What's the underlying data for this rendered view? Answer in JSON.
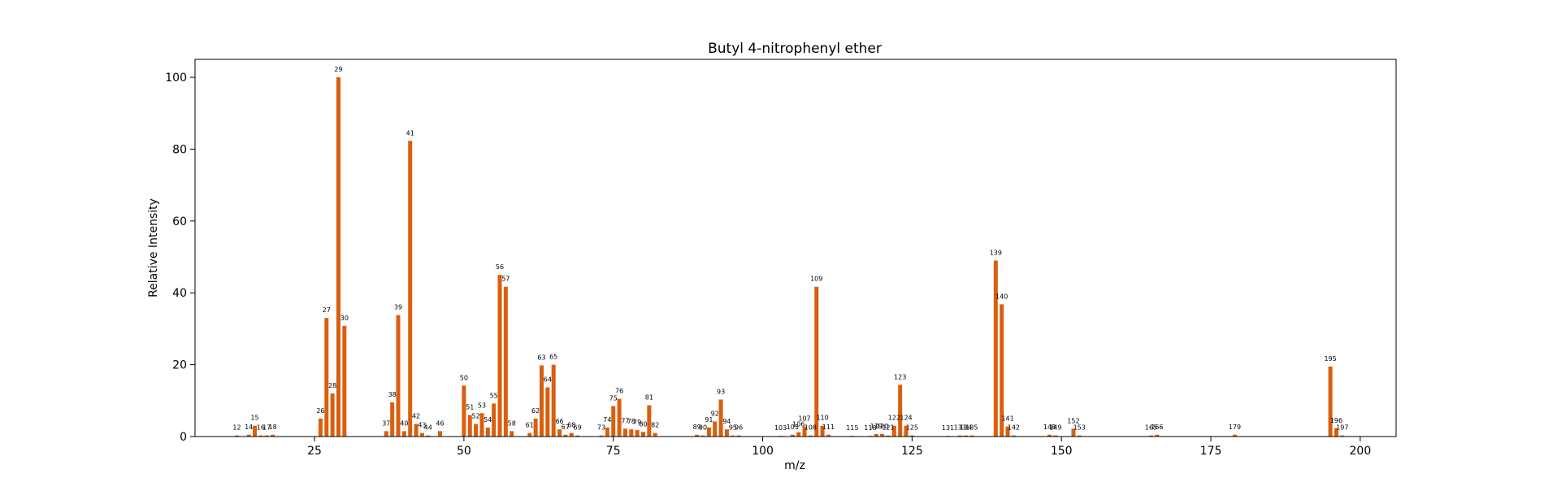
{
  "chart_data": {
    "type": "bar",
    "title": "Butyl 4-nitrophenyl ether",
    "xlabel": "m/z",
    "ylabel": "Relative Intensity",
    "xlim": [
      5,
      206
    ],
    "ylim": [
      0,
      105
    ],
    "xticks": [
      25,
      50,
      75,
      100,
      125,
      150,
      175,
      200
    ],
    "yticks": [
      0,
      20,
      40,
      60,
      80,
      100
    ],
    "grid": false,
    "bar_color": "#d95f0e",
    "peaks": [
      {
        "mz": 12,
        "intensity": 0.3
      },
      {
        "mz": 14,
        "intensity": 0.5
      },
      {
        "mz": 15,
        "intensity": 3.0
      },
      {
        "mz": 16,
        "intensity": 0.3
      },
      {
        "mz": 17,
        "intensity": 0.3
      },
      {
        "mz": 18,
        "intensity": 0.5
      },
      {
        "mz": 26,
        "intensity": 5.0
      },
      {
        "mz": 27,
        "intensity": 33.0
      },
      {
        "mz": 28,
        "intensity": 12.0
      },
      {
        "mz": 29,
        "intensity": 100.0
      },
      {
        "mz": 30,
        "intensity": 30.8
      },
      {
        "mz": 37,
        "intensity": 1.5
      },
      {
        "mz": 38,
        "intensity": 9.5
      },
      {
        "mz": 39,
        "intensity": 33.8
      },
      {
        "mz": 40,
        "intensity": 1.5
      },
      {
        "mz": 41,
        "intensity": 82.3
      },
      {
        "mz": 42,
        "intensity": 3.5
      },
      {
        "mz": 43,
        "intensity": 1.0
      },
      {
        "mz": 44,
        "intensity": 0.3
      },
      {
        "mz": 46,
        "intensity": 1.5
      },
      {
        "mz": 50,
        "intensity": 14.2
      },
      {
        "mz": 51,
        "intensity": 6.0
      },
      {
        "mz": 52,
        "intensity": 3.5
      },
      {
        "mz": 53,
        "intensity": 6.5
      },
      {
        "mz": 54,
        "intensity": 2.5
      },
      {
        "mz": 55,
        "intensity": 9.2
      },
      {
        "mz": 56,
        "intensity": 45.0
      },
      {
        "mz": 57,
        "intensity": 41.7
      },
      {
        "mz": 58,
        "intensity": 1.5
      },
      {
        "mz": 61,
        "intensity": 1.0
      },
      {
        "mz": 62,
        "intensity": 5.0
      },
      {
        "mz": 63,
        "intensity": 19.8
      },
      {
        "mz": 64,
        "intensity": 13.7
      },
      {
        "mz": 65,
        "intensity": 20.0
      },
      {
        "mz": 66,
        "intensity": 2.0
      },
      {
        "mz": 67,
        "intensity": 0.5
      },
      {
        "mz": 68,
        "intensity": 1.0
      },
      {
        "mz": 69,
        "intensity": 0.3
      },
      {
        "mz": 73,
        "intensity": 0.3
      },
      {
        "mz": 74,
        "intensity": 2.5
      },
      {
        "mz": 75,
        "intensity": 8.5
      },
      {
        "mz": 76,
        "intensity": 10.5
      },
      {
        "mz": 77,
        "intensity": 2.2
      },
      {
        "mz": 78,
        "intensity": 2.0
      },
      {
        "mz": 79,
        "intensity": 1.8
      },
      {
        "mz": 80,
        "intensity": 1.3
      },
      {
        "mz": 81,
        "intensity": 8.7
      },
      {
        "mz": 82,
        "intensity": 1.0
      },
      {
        "mz": 89,
        "intensity": 0.5
      },
      {
        "mz": 90,
        "intensity": 0.3
      },
      {
        "mz": 91,
        "intensity": 2.5
      },
      {
        "mz": 92,
        "intensity": 4.2
      },
      {
        "mz": 93,
        "intensity": 10.3
      },
      {
        "mz": 94,
        "intensity": 2.0
      },
      {
        "mz": 95,
        "intensity": 0.3
      },
      {
        "mz": 96,
        "intensity": 0.3
      },
      {
        "mz": 103,
        "intensity": 0.2
      },
      {
        "mz": 105,
        "intensity": 0.5
      },
      {
        "mz": 106,
        "intensity": 1.2
      },
      {
        "mz": 107,
        "intensity": 2.8
      },
      {
        "mz": 108,
        "intensity": 0.3
      },
      {
        "mz": 109,
        "intensity": 41.7
      },
      {
        "mz": 110,
        "intensity": 3.0
      },
      {
        "mz": 111,
        "intensity": 0.5
      },
      {
        "mz": 115,
        "intensity": 0.2
      },
      {
        "mz": 118,
        "intensity": 0.2
      },
      {
        "mz": 119,
        "intensity": 0.7
      },
      {
        "mz": 120,
        "intensity": 0.7
      },
      {
        "mz": 121,
        "intensity": 0.3
      },
      {
        "mz": 122,
        "intensity": 3.0
      },
      {
        "mz": 123,
        "intensity": 14.4
      },
      {
        "mz": 124,
        "intensity": 3.0
      },
      {
        "mz": 125,
        "intensity": 0.3
      },
      {
        "mz": 131,
        "intensity": 0.2
      },
      {
        "mz": 133,
        "intensity": 0.3
      },
      {
        "mz": 134,
        "intensity": 0.3
      },
      {
        "mz": 135,
        "intensity": 0.3
      },
      {
        "mz": 139,
        "intensity": 49.0
      },
      {
        "mz": 140,
        "intensity": 36.8
      },
      {
        "mz": 141,
        "intensity": 2.8
      },
      {
        "mz": 142,
        "intensity": 0.3
      },
      {
        "mz": 148,
        "intensity": 0.5
      },
      {
        "mz": 149,
        "intensity": 0.3
      },
      {
        "mz": 152,
        "intensity": 2.2
      },
      {
        "mz": 153,
        "intensity": 0.3
      },
      {
        "mz": 165,
        "intensity": 0.3
      },
      {
        "mz": 166,
        "intensity": 0.5
      },
      {
        "mz": 179,
        "intensity": 0.5
      },
      {
        "mz": 195,
        "intensity": 19.5
      },
      {
        "mz": 196,
        "intensity": 2.3
      },
      {
        "mz": 197,
        "intensity": 0.3
      }
    ]
  }
}
